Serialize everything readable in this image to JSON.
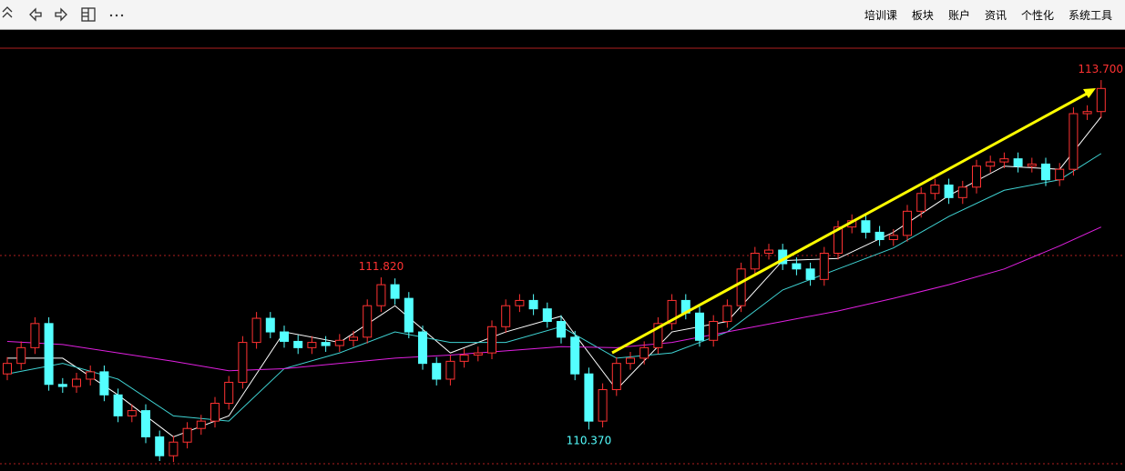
{
  "toolbar": {
    "items": [
      "培训课",
      "板块",
      "账户",
      "资讯",
      "个性化",
      "系统工具"
    ]
  },
  "chart_data": {
    "type": "candlestick",
    "ylim": [
      110.044,
      114.004
    ],
    "up_color": "#ff3232",
    "down_color": "#54ffff",
    "opens": [
      110.9,
      111.0,
      111.15,
      111.38,
      110.8,
      110.78,
      110.85,
      110.92,
      110.7,
      110.5,
      110.55,
      110.3,
      110.12,
      110.25,
      110.38,
      110.45,
      110.62,
      110.82,
      111.2,
      111.43,
      111.3,
      111.21,
      111.15,
      111.2,
      111.17,
      111.22,
      111.25,
      111.55,
      111.75,
      111.62,
      111.3,
      111.0,
      110.85,
      111.02,
      111.08,
      111.1,
      111.35,
      111.55,
      111.6,
      111.52,
      111.4,
      111.25,
      110.9,
      110.45,
      110.75,
      111.0,
      111.05,
      111.15,
      111.38,
      111.6,
      111.48,
      111.22,
      111.4,
      111.55,
      111.9,
      112.05,
      112.08,
      111.95,
      111.9,
      111.8,
      112.05,
      112.3,
      112.36,
      112.25,
      112.18,
      112.22,
      112.45,
      112.62,
      112.7,
      112.58,
      112.68,
      112.88,
      112.92,
      112.95,
      112.88,
      112.9,
      112.75,
      112.85,
      113.38,
      113.4
    ],
    "highs": [
      111.06,
      111.21,
      111.44,
      111.44,
      110.86,
      110.91,
      110.98,
      110.98,
      110.76,
      110.61,
      110.61,
      110.36,
      110.31,
      110.44,
      110.51,
      110.68,
      110.88,
      111.26,
      111.49,
      111.49,
      111.36,
      111.27,
      111.26,
      111.26,
      111.28,
      111.31,
      111.61,
      111.82,
      111.81,
      111.68,
      111.36,
      111.06,
      111.08,
      111.14,
      111.16,
      111.41,
      111.61,
      111.66,
      111.66,
      111.58,
      111.46,
      111.31,
      110.96,
      110.81,
      111.06,
      111.11,
      111.21,
      111.44,
      111.66,
      111.66,
      111.54,
      111.46,
      111.61,
      111.96,
      112.11,
      112.14,
      112.14,
      112.01,
      111.96,
      112.11,
      112.36,
      112.42,
      112.42,
      112.31,
      112.28,
      112.51,
      112.68,
      112.76,
      112.76,
      112.74,
      112.94,
      112.98,
      113.01,
      113.01,
      112.96,
      112.96,
      112.91,
      113.44,
      113.46,
      113.7
    ],
    "lows": [
      110.84,
      110.94,
      111.09,
      110.74,
      110.72,
      110.72,
      110.79,
      110.64,
      110.44,
      110.44,
      110.24,
      110.07,
      110.06,
      110.19,
      110.32,
      110.39,
      110.56,
      110.76,
      111.14,
      111.24,
      111.15,
      111.09,
      111.09,
      111.11,
      111.11,
      111.16,
      111.19,
      111.49,
      111.56,
      111.24,
      110.94,
      110.79,
      110.79,
      110.96,
      111.02,
      111.04,
      111.29,
      111.49,
      111.46,
      111.34,
      111.19,
      110.84,
      110.37,
      110.39,
      110.69,
      110.94,
      110.99,
      111.09,
      111.32,
      111.42,
      111.16,
      111.16,
      111.34,
      111.49,
      111.84,
      111.99,
      111.89,
      111.84,
      111.74,
      111.74,
      111.99,
      112.24,
      112.19,
      112.12,
      112.12,
      112.16,
      112.39,
      112.56,
      112.52,
      112.52,
      112.62,
      112.82,
      112.86,
      112.82,
      112.82,
      112.69,
      112.69,
      112.79,
      113.32,
      113.34
    ],
    "closes": [
      111.0,
      111.15,
      111.38,
      110.8,
      110.78,
      110.85,
      110.92,
      110.7,
      110.5,
      110.55,
      110.3,
      110.12,
      110.25,
      110.38,
      110.45,
      110.62,
      110.82,
      111.2,
      111.43,
      111.3,
      111.21,
      111.15,
      111.2,
      111.17,
      111.22,
      111.25,
      111.55,
      111.75,
      111.62,
      111.3,
      111.0,
      110.85,
      111.02,
      111.08,
      111.1,
      111.35,
      111.55,
      111.6,
      111.52,
      111.4,
      111.25,
      110.9,
      110.45,
      110.75,
      111.0,
      111.05,
      111.15,
      111.38,
      111.6,
      111.48,
      111.22,
      111.4,
      111.55,
      111.9,
      112.05,
      112.08,
      111.95,
      111.9,
      111.8,
      112.05,
      112.3,
      112.36,
      112.25,
      112.18,
      112.22,
      112.45,
      112.62,
      112.7,
      112.58,
      112.68,
      112.88,
      112.92,
      112.95,
      112.88,
      112.9,
      112.75,
      112.85,
      113.38,
      113.4,
      113.62
    ],
    "series": [
      {
        "color": "#ffffff",
        "x": [
          0,
          4,
          8,
          12,
          16,
          20,
          24,
          28,
          32,
          36,
          40,
          44,
          48,
          52,
          56,
          60,
          64,
          68,
          72,
          76,
          79
        ],
        "values": [
          111.05,
          111.05,
          110.7,
          110.3,
          110.5,
          111.3,
          111.2,
          111.55,
          111.1,
          111.3,
          111.45,
          110.75,
          111.3,
          111.4,
          111.98,
          112.0,
          112.25,
          112.6,
          112.88,
          112.85,
          113.35
        ]
      },
      {
        "color": "#3fd3d3",
        "x": [
          0,
          4,
          8,
          12,
          16,
          20,
          24,
          28,
          32,
          36,
          40,
          44,
          48,
          52,
          56,
          60,
          64,
          68,
          72,
          76,
          79
        ],
        "values": [
          110.9,
          111.0,
          110.85,
          110.5,
          110.45,
          110.95,
          111.1,
          111.3,
          111.2,
          111.2,
          111.35,
          111.05,
          111.1,
          111.3,
          111.7,
          111.9,
          112.1,
          112.4,
          112.65,
          112.75,
          113.0
        ]
      },
      {
        "color": "#e020e0",
        "x": [
          0,
          4,
          8,
          12,
          16,
          20,
          24,
          28,
          32,
          36,
          40,
          44,
          48,
          52,
          56,
          60,
          64,
          68,
          72,
          76,
          79
        ],
        "values": [
          111.21,
          111.18,
          111.1,
          111.02,
          110.93,
          110.95,
          111.0,
          111.05,
          111.08,
          111.12,
          111.16,
          111.15,
          111.2,
          111.3,
          111.4,
          111.5,
          111.62,
          111.75,
          111.9,
          112.12,
          112.3
        ]
      }
    ],
    "annotations": [
      {
        "value": 111.82,
        "label": "111.820"
      },
      {
        "value": 110.37,
        "label": "110.370"
      },
      {
        "value": 113.7,
        "label": "113.700"
      }
    ]
  }
}
